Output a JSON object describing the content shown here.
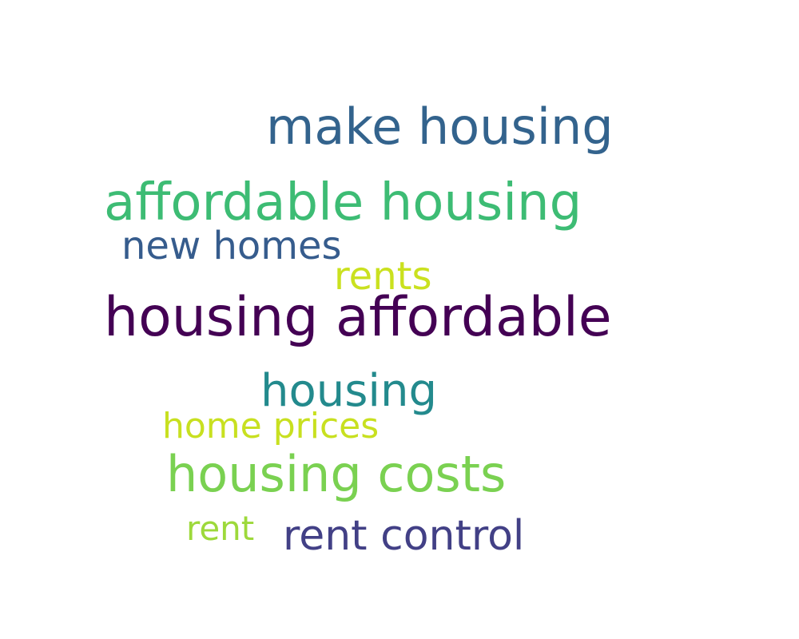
{
  "words": [
    {
      "text": "make housing",
      "color": "#33638d"
    },
    {
      "text": "affordable housing",
      "color": "#3dbc74"
    },
    {
      "text": "new homes",
      "color": "#365c8d"
    },
    {
      "text": "rents",
      "color": "#cae11f"
    },
    {
      "text": "housing affordable",
      "color": "#440154"
    },
    {
      "text": "housing",
      "color": "#238a8d"
    },
    {
      "text": "home prices",
      "color": "#c8e020"
    },
    {
      "text": "housing costs",
      "color": "#7ad151"
    },
    {
      "text": "rent",
      "color": "#9dd93b"
    },
    {
      "text": "rent control",
      "color": "#424086"
    }
  ]
}
